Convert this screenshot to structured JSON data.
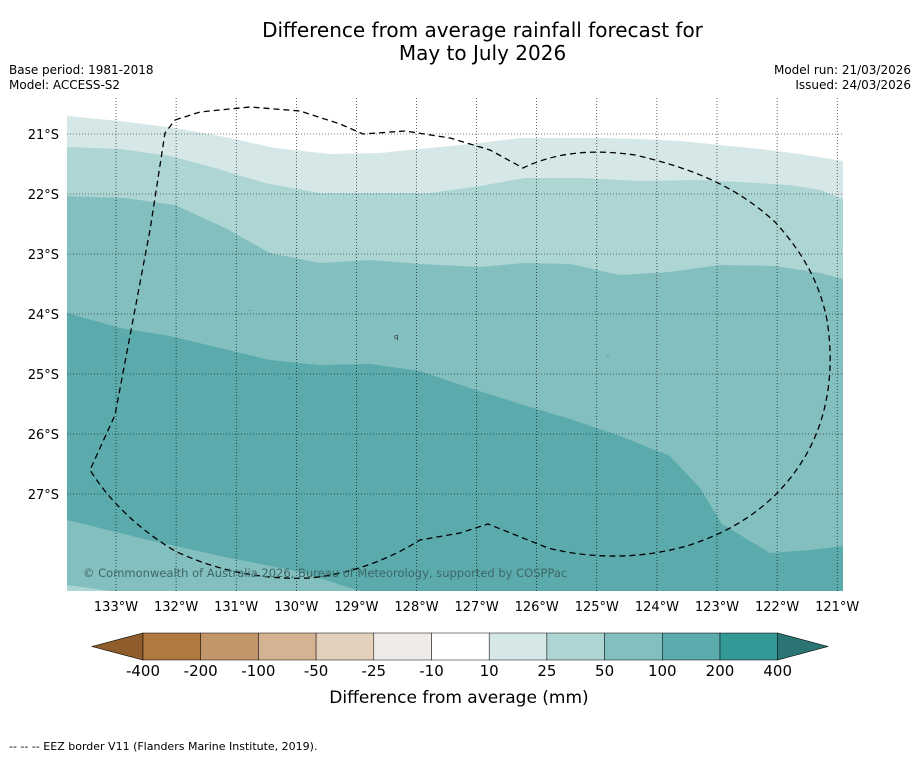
{
  "title": {
    "line1": "Difference from average rainfall forecast for",
    "line2": "May to July 2026"
  },
  "meta_left": {
    "base_period": "Base period: 1981-2018",
    "model": "Model: ACCESS-S2"
  },
  "meta_right": {
    "model_run": "Model run: 21/03/2026",
    "issued": "Issued: 24/03/2026"
  },
  "map": {
    "latitude_labels": [
      "21°S",
      "22°S",
      "23°S",
      "24°S",
      "25°S",
      "26°S",
      "27°S"
    ],
    "longitude_labels": [
      "133°W",
      "132°W",
      "131°W",
      "130°W",
      "129°W",
      "128°W",
      "127°W",
      "126°W",
      "125°W",
      "124°W",
      "123°W",
      "122°W",
      "121°W"
    ],
    "copyright": "© Commonwealth of Australia 2026, Bureau of Meteorology, supported by COSPPac",
    "island_marker": "q"
  },
  "legend": {
    "tick_labels": [
      "-400",
      "-200",
      "-100",
      "-50",
      "-25",
      "-10",
      "10",
      "25",
      "50",
      "100",
      "200",
      "400"
    ],
    "colors": [
      "#b07940",
      "#c3956a",
      "#d4b393",
      "#e4d1bd",
      "#efebe8",
      "#ffffff",
      "#d5e8e7",
      "#acd5d4",
      "#84bfbf",
      "#5babac",
      "#339997"
    ],
    "under_color": "#8f5d2c",
    "over_color": "#2a7473",
    "title": "Difference from average (mm)"
  },
  "footnote": "--  --  -- EEZ border V11 (Flanders Marine Institute, 2019)."
}
